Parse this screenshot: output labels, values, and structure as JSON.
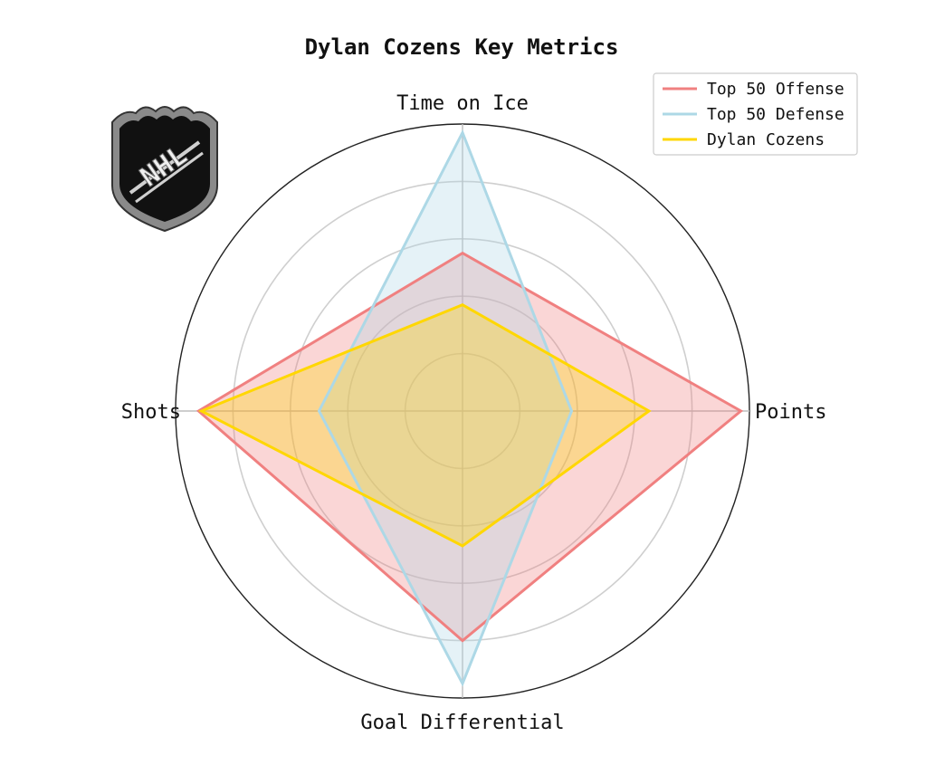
{
  "chart_data": {
    "type": "radar",
    "title": "Dylan Cozens Key Metrics",
    "axes": [
      "Time on Ice",
      "Points",
      "Goal Differential",
      "Shots"
    ],
    "rlim": [
      0,
      1
    ],
    "grid": true,
    "legend_position": "top-right",
    "series": [
      {
        "name": "Top 50 Offense",
        "color": "#f08080",
        "values": [
          0.55,
          0.97,
          0.8,
          0.92
        ]
      },
      {
        "name": "Top 50 Defense",
        "color": "#add8e6",
        "values": [
          0.97,
          0.38,
          0.95,
          0.5
        ]
      },
      {
        "name": "Dylan Cozens",
        "color": "#ffd700",
        "values": [
          0.37,
          0.65,
          0.47,
          0.91
        ]
      }
    ]
  },
  "logo": {
    "icon": "nhl-shield-icon",
    "text": "NHL"
  }
}
